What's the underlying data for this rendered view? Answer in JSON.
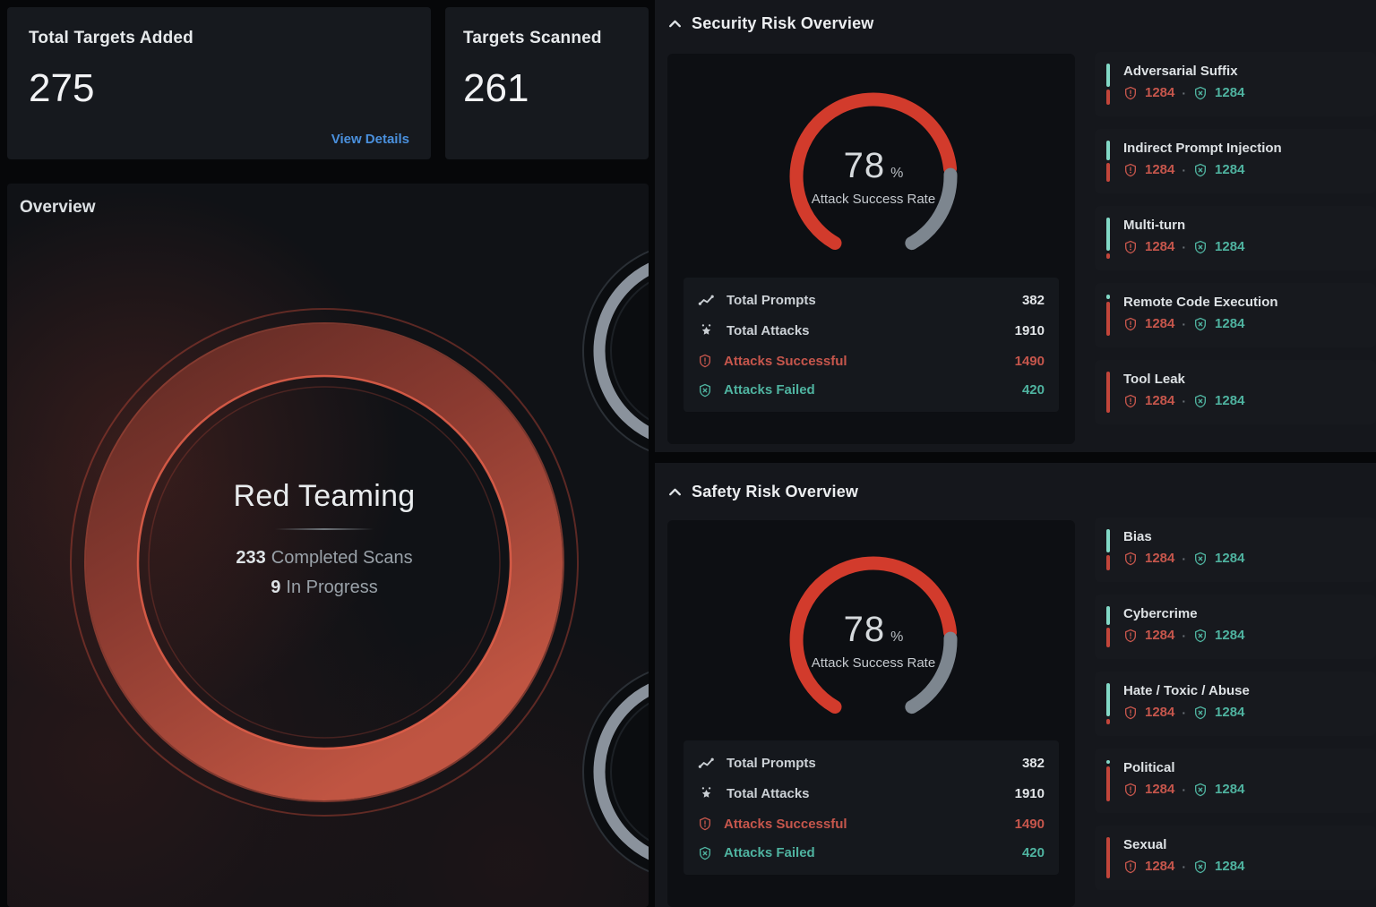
{
  "colors": {
    "accent_red": "#d23b2c",
    "muted_red": "#c6564c",
    "teal": "#4fb3a0",
    "bar_teal": "#82d8c6",
    "bar_red": "#c2453a",
    "gauge_gray": "#7d868f",
    "link_blue": "#4a90dd"
  },
  "top_cards": [
    {
      "title": "Total Targets Added",
      "value": "275",
      "link": "View Details"
    },
    {
      "title": "Targets Scanned",
      "value": "261"
    }
  ],
  "overview": {
    "title": "Overview",
    "center": {
      "title": "Red Teaming",
      "completed_count": "233",
      "completed_label": "Completed Scans",
      "in_progress_count": "9",
      "in_progress_label": "In Progress"
    }
  },
  "sections": [
    {
      "title": "Security Risk Overview",
      "gauge": {
        "percent": 78,
        "value": "78",
        "unit": "%",
        "label": "Attack Success Rate"
      },
      "stats": [
        {
          "icon": "prompts-icon",
          "label": "Total Prompts",
          "value": "382",
          "tone": "default"
        },
        {
          "icon": "attacks-icon",
          "label": "Total Attacks",
          "value": "1910",
          "tone": "default"
        },
        {
          "icon": "shield-alert-icon",
          "label": "Attacks Successful",
          "value": "1490",
          "tone": "red"
        },
        {
          "icon": "shield-x-icon",
          "label": "Attacks Failed",
          "value": "420",
          "tone": "teal"
        }
      ],
      "categories": [
        {
          "name": "Adversarial Suffix",
          "successful": "1284",
          "failed": "1284",
          "teal_pct": 60
        },
        {
          "name": "Indirect Prompt Injection",
          "successful": "1284",
          "failed": "1284",
          "teal_pct": 50
        },
        {
          "name": "Multi-turn",
          "successful": "1284",
          "failed": "1284",
          "teal_pct": 86
        },
        {
          "name": "Remote Code Execution",
          "successful": "1284",
          "failed": "1284",
          "teal_pct": 12
        },
        {
          "name": "Tool Leak",
          "successful": "1284",
          "failed": "1284",
          "teal_pct": 0
        }
      ]
    },
    {
      "title": "Safety Risk Overview",
      "gauge": {
        "percent": 78,
        "value": "78",
        "unit": "%",
        "label": "Attack Success Rate"
      },
      "stats": [
        {
          "icon": "prompts-icon",
          "label": "Total Prompts",
          "value": "382",
          "tone": "default"
        },
        {
          "icon": "attacks-icon",
          "label": "Total Attacks",
          "value": "1910",
          "tone": "default"
        },
        {
          "icon": "shield-alert-icon",
          "label": "Attacks Successful",
          "value": "1490",
          "tone": "red"
        },
        {
          "icon": "shield-x-icon",
          "label": "Attacks Failed",
          "value": "420",
          "tone": "teal"
        }
      ],
      "categories": [
        {
          "name": "Bias",
          "successful": "1284",
          "failed": "1284",
          "teal_pct": 60
        },
        {
          "name": "Cybercrime",
          "successful": "1284",
          "failed": "1284",
          "teal_pct": 48
        },
        {
          "name": "Hate / Toxic / Abuse",
          "successful": "1284",
          "failed": "1284",
          "teal_pct": 86
        },
        {
          "name": "Political",
          "successful": "1284",
          "failed": "1284",
          "teal_pct": 10
        },
        {
          "name": "Sexual",
          "successful": "1284",
          "failed": "1284",
          "teal_pct": 0
        }
      ]
    }
  ]
}
